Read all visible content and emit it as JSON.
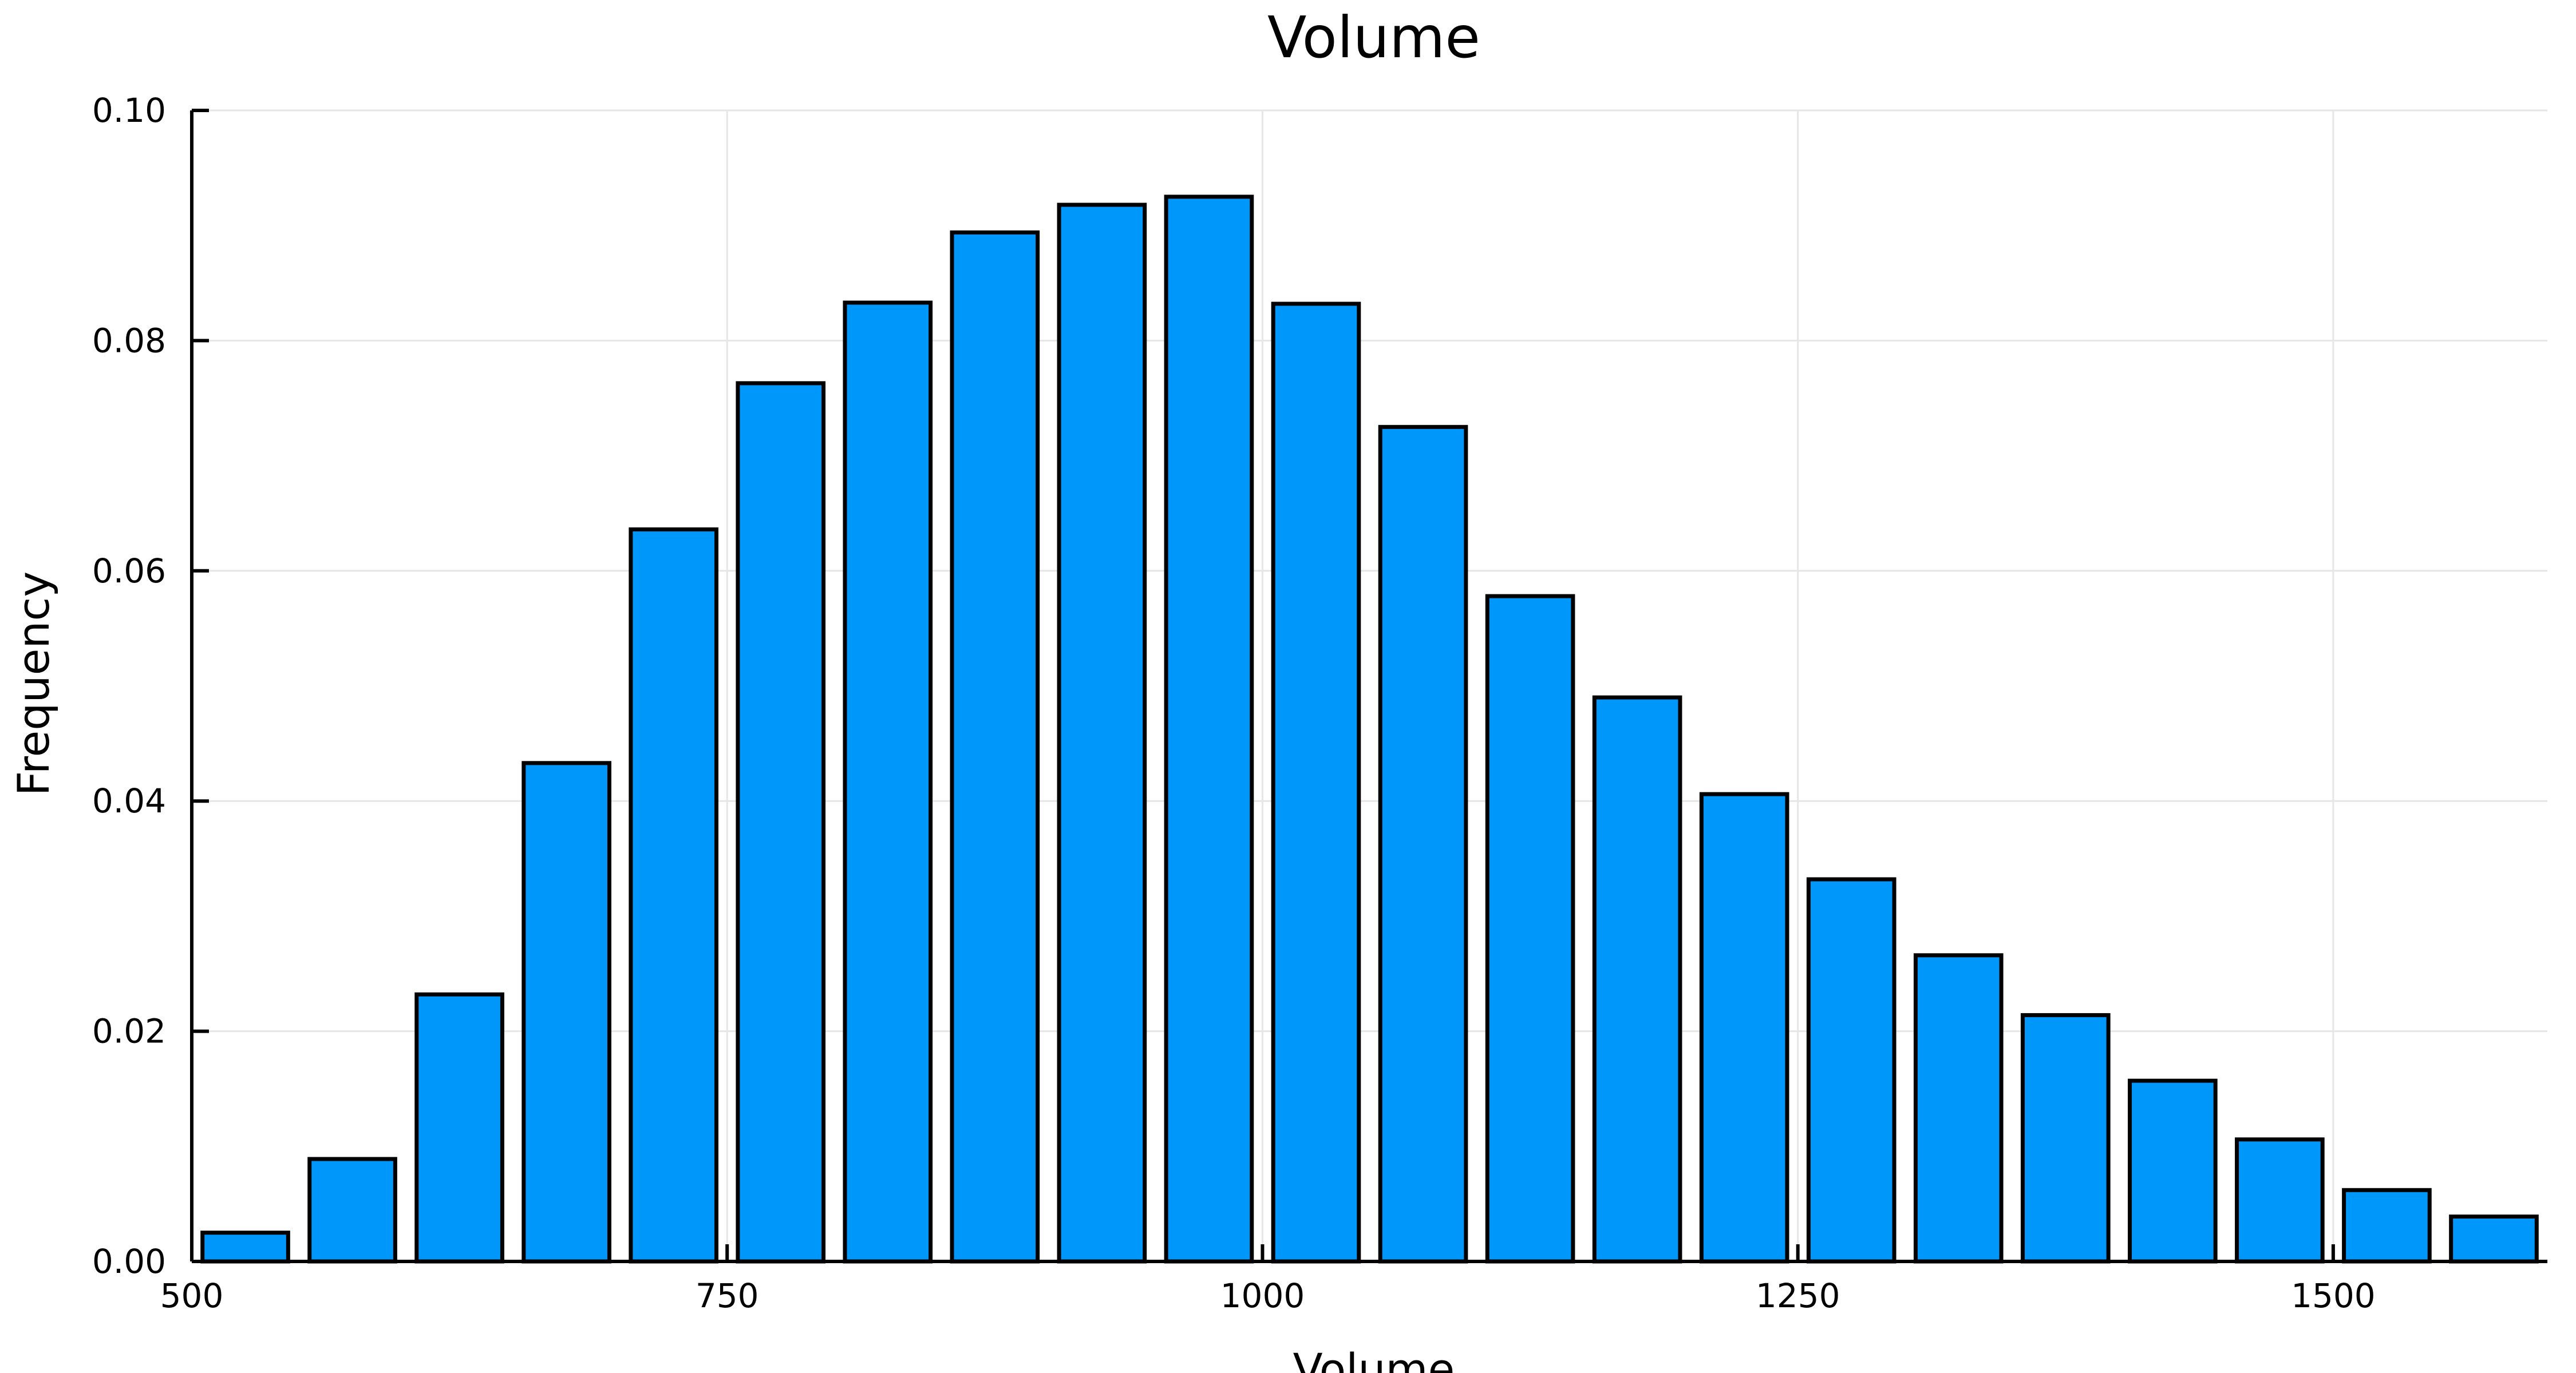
{
  "chart_data": {
    "type": "bar",
    "title": "Volume",
    "xlabel": "Volume",
    "ylabel": "Frequency",
    "xlim": [
      500,
      1600
    ],
    "ylim": [
      0,
      0.1
    ],
    "x_ticks": [
      500,
      750,
      1000,
      1250,
      1500
    ],
    "x_tick_labels": [
      "500",
      "750",
      "1000",
      "1250",
      "1500"
    ],
    "y_ticks": [
      0,
      0.02,
      0.04,
      0.06,
      0.08,
      0.1
    ],
    "y_tick_labels": [
      "0.00",
      "0.02",
      "0.04",
      "0.06",
      "0.08",
      "0.10"
    ],
    "grid": true,
    "bar_color": "#0097fa",
    "bin_edges": [
      500,
      550,
      600,
      650,
      700,
      750,
      800,
      850,
      900,
      950,
      1000,
      1050,
      1100,
      1150,
      1200,
      1250,
      1300,
      1350,
      1400,
      1450,
      1500,
      1550,
      1600
    ],
    "values": [
      0.0025,
      0.0089,
      0.0232,
      0.0433,
      0.0636,
      0.0763,
      0.0833,
      0.0894,
      0.0918,
      0.0925,
      0.0832,
      0.0725,
      0.0578,
      0.049,
      0.0406,
      0.0332,
      0.0266,
      0.0214,
      0.0157,
      0.0106,
      0.0062,
      0.0039
    ]
  }
}
